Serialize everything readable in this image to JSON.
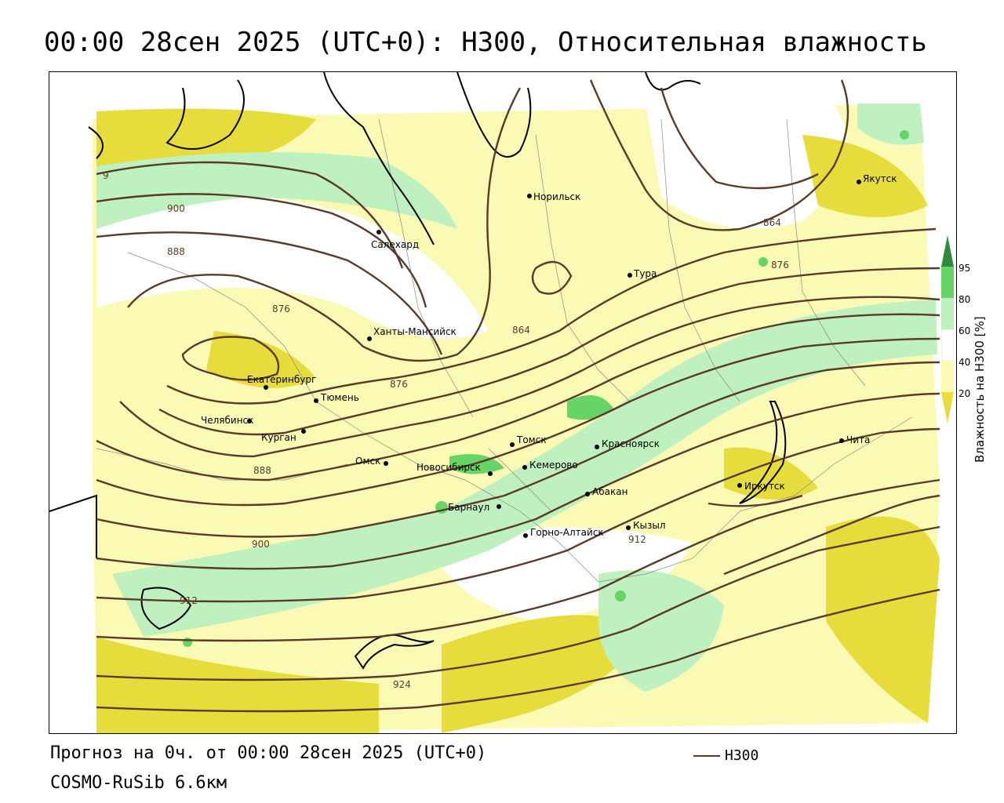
{
  "title": "00:00 28сен 2025 (UTC+0): H300, Относительная влажность",
  "footer": {
    "forecast": "Прогноз на 0ч. от 00:00 28сен 2025 (UTC+0)",
    "model": "COSMO-RuSib 6.6км",
    "legend_label": "H300"
  },
  "colorbar": {
    "title": "Влажность на H300 [%]",
    "ticks": [
      "95",
      "80",
      "60",
      "40",
      "20"
    ],
    "colors": {
      "95": "#2e8b3a",
      "80": "#66d466",
      "60": "#bff0bf",
      "40": "#ffffff",
      "20": "#fafab4",
      "low": "#e6dc3c"
    }
  },
  "cities": [
    {
      "name": "Норильск"
    },
    {
      "name": "Салехард"
    },
    {
      "name": "Якутск"
    },
    {
      "name": "Тура"
    },
    {
      "name": "Ханты-Мансийск"
    },
    {
      "name": "Екатеринбург"
    },
    {
      "name": "Тюмень"
    },
    {
      "name": "Челябинск"
    },
    {
      "name": "Курган"
    },
    {
      "name": "Омск"
    },
    {
      "name": "Новосибирск"
    },
    {
      "name": "Томск"
    },
    {
      "name": "Кемерово"
    },
    {
      "name": "Красноярск"
    },
    {
      "name": "Барнаул"
    },
    {
      "name": "Абакан"
    },
    {
      "name": "Горно-Алтайск"
    },
    {
      "name": "Кызыл"
    },
    {
      "name": "Иркутск"
    },
    {
      "name": "Чита"
    }
  ],
  "isolines": [
    {
      "label": "900"
    },
    {
      "label": "888"
    },
    {
      "label": "876"
    },
    {
      "label": "864"
    },
    {
      "label": "864"
    },
    {
      "label": "876"
    },
    {
      "label": "876"
    },
    {
      "label": "888"
    },
    {
      "label": "900"
    },
    {
      "label": "912"
    },
    {
      "label": "912"
    },
    {
      "label": "924"
    },
    {
      "label": "9"
    }
  ]
}
